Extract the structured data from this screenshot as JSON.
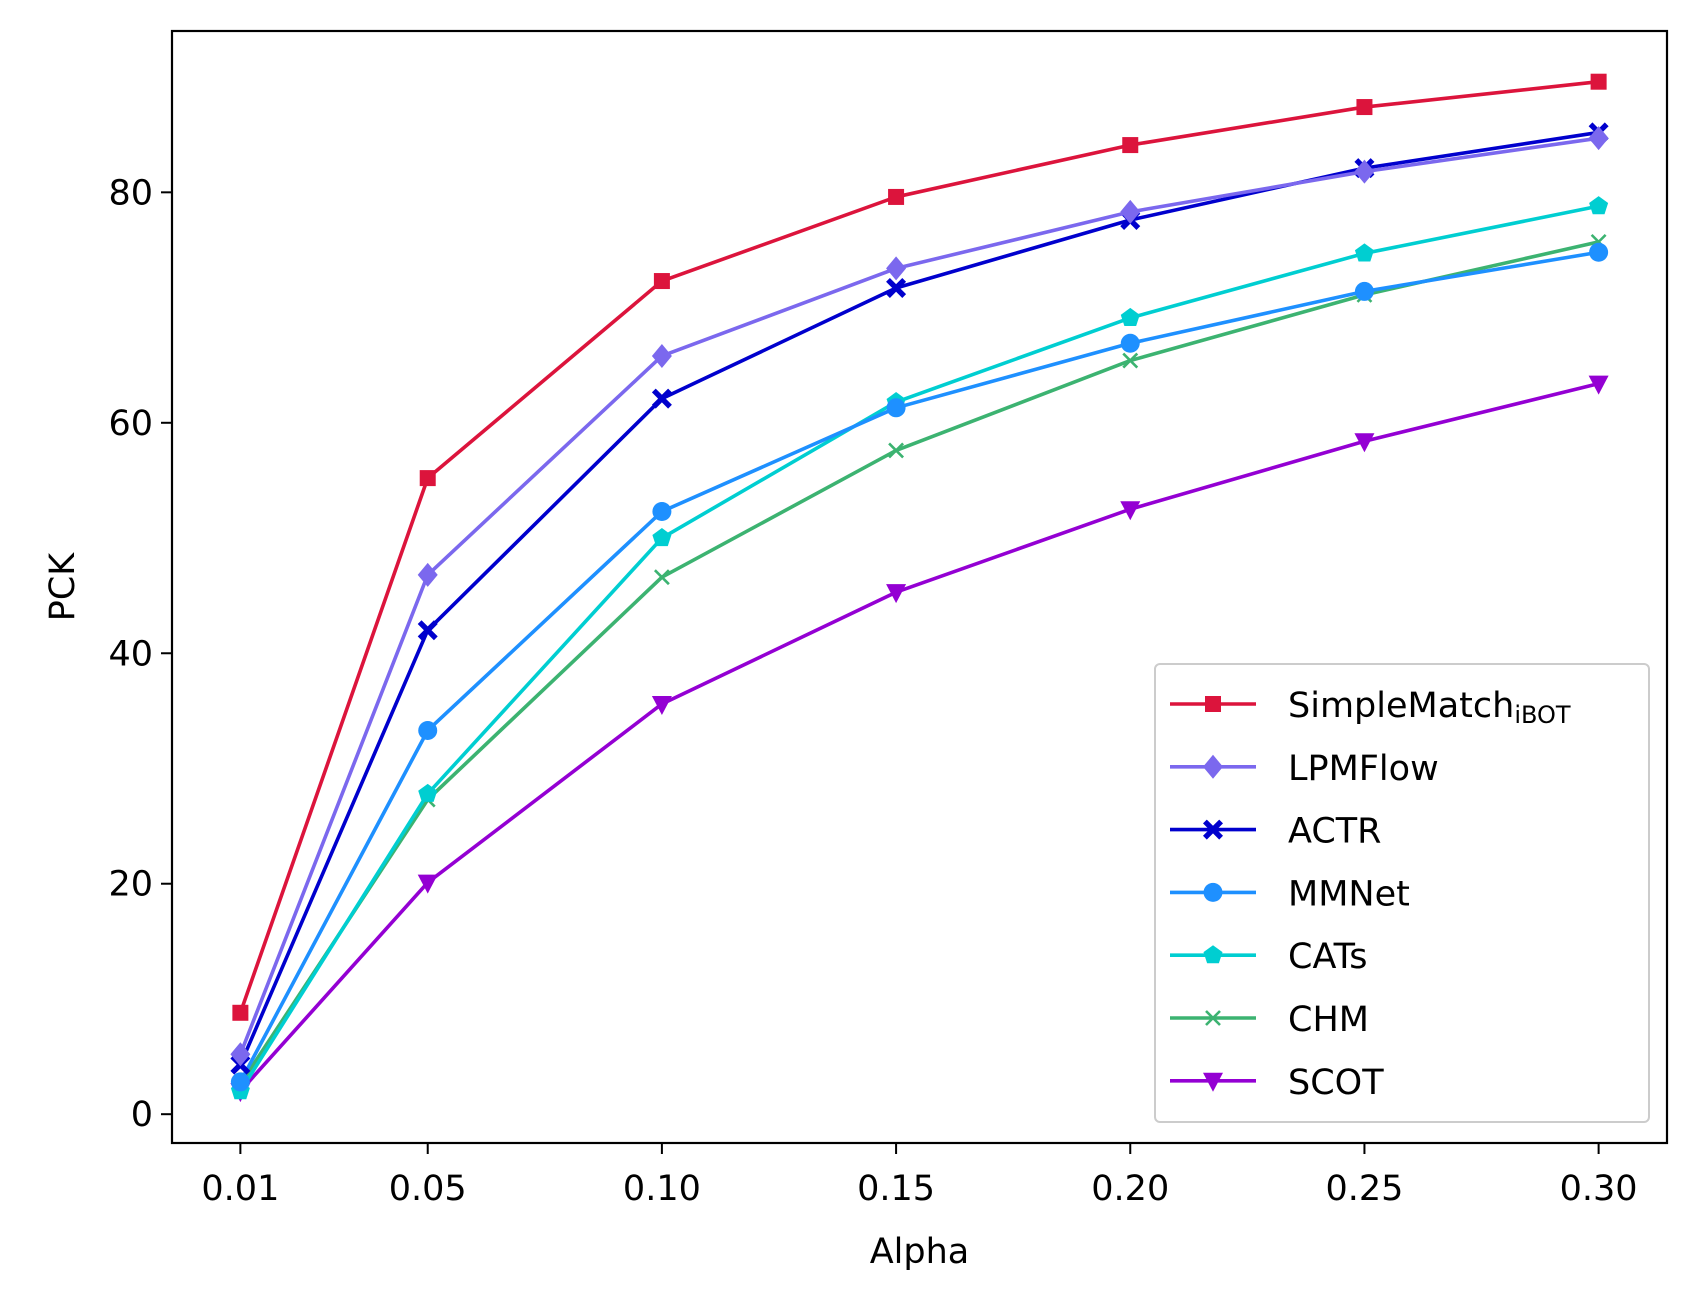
{
  "chart_data": {
    "type": "line",
    "xlabel": "Alpha",
    "ylabel": "PCK",
    "x": [
      0.01,
      0.05,
      0.1,
      0.15,
      0.2,
      0.25,
      0.3
    ],
    "x_tick_labels": [
      "0.01",
      "0.05",
      "0.10",
      "0.15",
      "0.20",
      "0.25",
      "0.30"
    ],
    "y_ticks": [
      0,
      20,
      40,
      60,
      80
    ],
    "y_tick_labels": [
      "0",
      "20",
      "40",
      "60",
      "80"
    ],
    "xlim": [
      -0.0046,
      0.3146
    ],
    "ylim": [
      -2.5,
      94.0
    ],
    "grid": false,
    "legend_position": "lower-right",
    "series": [
      {
        "name": "SimpleMatch",
        "name_sub": "iBOT",
        "color": "#DC143C",
        "marker": "square",
        "values": [
          8.8,
          55.2,
          72.3,
          79.6,
          84.1,
          87.4,
          89.6
        ]
      },
      {
        "name": "LPMFlow",
        "color": "#7B68EE",
        "marker": "diamond",
        "values": [
          5.2,
          46.8,
          65.8,
          73.4,
          78.3,
          81.8,
          84.7
        ]
      },
      {
        "name": "ACTR",
        "color": "#0000CD",
        "marker": "x-filled",
        "values": [
          4.3,
          42.0,
          62.1,
          71.7,
          77.6,
          82.1,
          85.2
        ]
      },
      {
        "name": "MMNet",
        "color": "#1E90FF",
        "marker": "circle",
        "values": [
          2.8,
          33.3,
          52.3,
          61.3,
          66.9,
          71.4,
          74.8
        ]
      },
      {
        "name": "CATs",
        "color": "#00CED1",
        "marker": "pentagon",
        "values": [
          2.0,
          27.8,
          50.0,
          61.8,
          69.1,
          74.7,
          78.8
        ]
      },
      {
        "name": "CHM",
        "color": "#3CB371",
        "marker": "x",
        "values": [
          2.6,
          27.3,
          46.6,
          57.6,
          65.4,
          71.1,
          75.7
        ]
      },
      {
        "name": "SCOT",
        "color": "#9400D3",
        "marker": "triangle-down",
        "values": [
          2.0,
          20.1,
          35.6,
          45.3,
          52.5,
          58.4,
          63.4
        ]
      }
    ]
  }
}
